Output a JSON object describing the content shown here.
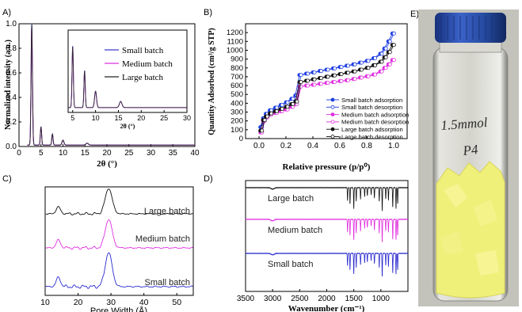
{
  "panel_letters": {
    "a": "A)",
    "b": "B)",
    "c": "C)",
    "d": "D)",
    "e": "E)"
  },
  "photo": {
    "label_top": "1.5mmol",
    "label_bottom": "P4"
  },
  "chart_data": [
    {
      "id": "A",
      "type": "line",
      "xlabel": "2θ (°)",
      "ylabel": "Normalized intensity (a.u.)",
      "xlim": [
        0,
        40
      ],
      "ylim": [
        0,
        1.0
      ],
      "xticks": [
        0,
        5,
        10,
        15,
        20,
        25,
        30,
        35,
        40
      ],
      "yticks": [
        0.0,
        0.2,
        0.4,
        0.6,
        0.8,
        1.0
      ],
      "peaks": [
        {
          "x": 2.9,
          "h": 0.99,
          "w": 0.22
        },
        {
          "x": 5.0,
          "h": 0.15,
          "w": 0.2
        },
        {
          "x": 7.6,
          "h": 0.09,
          "w": 0.2
        },
        {
          "x": 10.0,
          "h": 0.04,
          "w": 0.3
        },
        {
          "x": 15.5,
          "h": 0.015,
          "w": 0.4
        }
      ],
      "series": [
        {
          "name": "Small batch",
          "color": "#3f3fd0"
        },
        {
          "name": "Medium batch",
          "color": "#dd33dd"
        },
        {
          "name": "Large batch",
          "color": "#222222"
        }
      ],
      "inset": {
        "xlabel": "2θ (°)",
        "xlim": [
          4,
          30
        ],
        "xticks": [
          5,
          10,
          15,
          20,
          25,
          30
        ]
      },
      "grid": false,
      "legend": "inset"
    },
    {
      "id": "B",
      "type": "line",
      "xlabel": "Relative pressure (p/p⁰)",
      "ylabel": "Quantity Adsorbed (cm³/g STP)",
      "xlim": [
        -0.1,
        1.1
      ],
      "ylim": [
        0,
        1300
      ],
      "xticks": [
        0.0,
        0.2,
        0.4,
        0.6,
        0.8,
        1.0
      ],
      "yticks": [
        0,
        100,
        200,
        300,
        400,
        500,
        600,
        700,
        800,
        900,
        1000,
        1100,
        1200
      ],
      "x": [
        0.01,
        0.03,
        0.05,
        0.08,
        0.12,
        0.16,
        0.2,
        0.24,
        0.27,
        0.3,
        0.35,
        0.4,
        0.45,
        0.5,
        0.55,
        0.6,
        0.65,
        0.7,
        0.75,
        0.8,
        0.85,
        0.9,
        0.93,
        0.96,
        0.99
      ],
      "series": [
        {
          "name": "Small batch adsorption",
          "color": "#1f3fe0",
          "filled": true,
          "values": [
            130,
            230,
            280,
            320,
            350,
            380,
            410,
            450,
            490,
            720,
            735,
            750,
            765,
            780,
            795,
            810,
            825,
            840,
            860,
            880,
            910,
            960,
            1020,
            1100,
            1190
          ]
        },
        {
          "name": "Small batch desorption",
          "color": "#1f3fe0",
          "filled": false,
          "values": [
            130,
            230,
            280,
            320,
            350,
            380,
            410,
            450,
            490,
            720,
            735,
            750,
            765,
            780,
            795,
            810,
            825,
            840,
            860,
            880,
            910,
            960,
            1020,
            1100,
            1190
          ]
        },
        {
          "name": "Medium batch adsorption",
          "color": "#e02fe0",
          "filled": true,
          "values": [
            70,
            200,
            240,
            270,
            290,
            310,
            330,
            360,
            390,
            590,
            600,
            610,
            620,
            630,
            640,
            650,
            660,
            675,
            690,
            705,
            725,
            760,
            800,
            840,
            890
          ]
        },
        {
          "name": "Medium batch desorption",
          "color": "#e02fe0",
          "filled": false,
          "values": [
            70,
            200,
            240,
            270,
            290,
            310,
            330,
            360,
            390,
            590,
            600,
            610,
            620,
            630,
            640,
            650,
            660,
            675,
            690,
            705,
            725,
            760,
            800,
            840,
            890
          ]
        },
        {
          "name": "Large batch adsorption",
          "color": "#111111",
          "filled": true,
          "values": [
            90,
            210,
            250,
            285,
            310,
            335,
            360,
            390,
            420,
            640,
            655,
            670,
            685,
            700,
            715,
            730,
            745,
            760,
            780,
            800,
            830,
            870,
            920,
            980,
            1060
          ]
        },
        {
          "name": "Large batch desorption",
          "color": "#111111",
          "filled": false,
          "values": [
            90,
            210,
            250,
            285,
            310,
            335,
            360,
            390,
            420,
            640,
            655,
            670,
            685,
            700,
            715,
            730,
            745,
            760,
            780,
            800,
            830,
            870,
            920,
            980,
            1060
          ]
        }
      ],
      "grid": false,
      "legend": "bottom-right"
    },
    {
      "id": "C",
      "type": "line",
      "xlabel": "Pore Width (Å)",
      "xlim": [
        10,
        55
      ],
      "xticks": [
        10,
        20,
        30,
        40,
        50
      ],
      "peaks": [
        {
          "x": 14.0,
          "h": 0.28,
          "w": 0.9
        },
        {
          "x": 29.3,
          "h": 1.0,
          "w": 1.5
        }
      ],
      "series": [
        {
          "name": "Large batch",
          "color": "#111111"
        },
        {
          "name": "Medium batch",
          "color": "#e02fe0"
        },
        {
          "name": "Small batch",
          "color": "#2a2ad0"
        }
      ],
      "grid": false,
      "legend": "none"
    },
    {
      "id": "D",
      "type": "line",
      "xlabel": "Wavenumber (cm⁻¹)",
      "xlim": [
        3500,
        500
      ],
      "xticks": [
        3500,
        3000,
        2500,
        2000,
        1500,
        1000
      ],
      "bands": [
        1615,
        1570,
        1500,
        1455,
        1375,
        1300,
        1250,
        1180,
        1120,
        1030,
        975,
        910,
        860,
        780,
        720,
        690
      ],
      "series": [
        {
          "name": "Large batch",
          "color": "#111111"
        },
        {
          "name": "Medium batch",
          "color": "#e02fe0"
        },
        {
          "name": "Small batch",
          "color": "#2a2ad0"
        }
      ],
      "grid": false,
      "legend": "none"
    }
  ]
}
